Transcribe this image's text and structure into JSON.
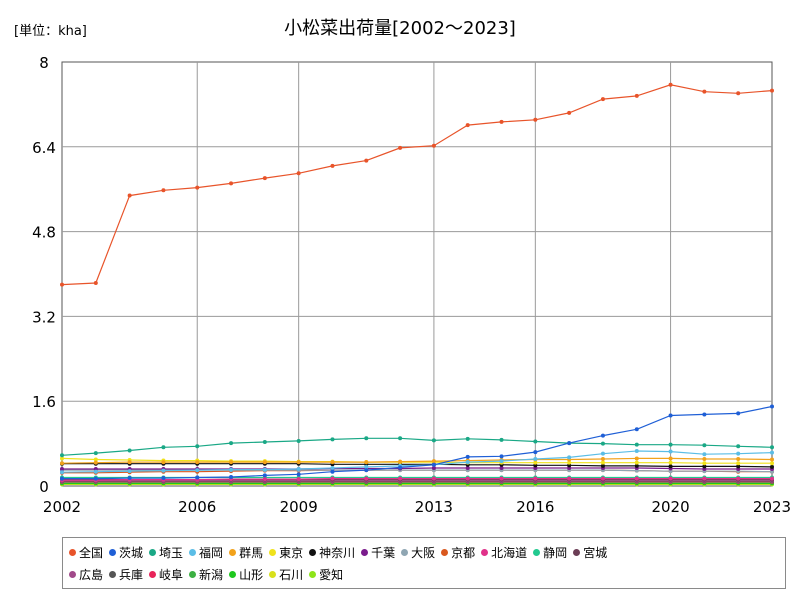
{
  "chart_data": {
    "type": "line",
    "title": "小松菜出荷量[2002～2023]",
    "unit_label": "[単位：kha]",
    "ylim": [
      0,
      8
    ],
    "y_ticks": [
      "0",
      "1.6",
      "3.2",
      "4.8",
      "6.4",
      "8"
    ],
    "x_ticks": [
      "2002",
      "2006",
      "2009",
      "2013",
      "2016",
      "2020",
      "2023"
    ],
    "grid": true,
    "legend_position": "bottom",
    "x": [
      2002,
      2003,
      2004,
      2005,
      2006,
      2007,
      2008,
      2009,
      2010,
      2011,
      2012,
      2013,
      2014,
      2015,
      2016,
      2017,
      2018,
      2019,
      2020,
      2021,
      2022,
      2023
    ],
    "series": [
      {
        "name": "全国",
        "color": "#e8542a",
        "values": [
          3.8,
          3.83,
          5.48,
          5.58,
          5.63,
          5.71,
          5.81,
          5.9,
          6.04,
          6.14,
          6.38,
          6.42,
          6.81,
          6.87,
          6.91,
          7.04,
          7.3,
          7.36,
          7.57,
          7.44,
          7.41,
          7.46
        ]
      },
      {
        "name": "茨城",
        "color": "#1f5fd6",
        "values": [
          0.14,
          0.14,
          0.15,
          0.15,
          0.16,
          0.17,
          0.2,
          0.22,
          0.27,
          0.3,
          0.35,
          0.4,
          0.55,
          0.56,
          0.64,
          0.81,
          0.95,
          1.07,
          1.33,
          1.35,
          1.37,
          1.5
        ]
      },
      {
        "name": "埼玉",
        "color": "#1aa886",
        "values": [
          0.58,
          0.62,
          0.67,
          0.73,
          0.75,
          0.81,
          0.83,
          0.85,
          0.88,
          0.9,
          0.9,
          0.86,
          0.89,
          0.87,
          0.84,
          0.81,
          0.8,
          0.78,
          0.78,
          0.77,
          0.75,
          0.73
        ]
      },
      {
        "name": "福岡",
        "color": "#5bbde6",
        "values": [
          0.26,
          0.27,
          0.28,
          0.29,
          0.3,
          0.31,
          0.31,
          0.32,
          0.34,
          0.36,
          0.38,
          0.4,
          0.45,
          0.47,
          0.51,
          0.54,
          0.61,
          0.66,
          0.65,
          0.6,
          0.61,
          0.63
        ]
      },
      {
        "name": "群馬",
        "color": "#f2a21b",
        "values": [
          0.43,
          0.44,
          0.45,
          0.45,
          0.45,
          0.45,
          0.45,
          0.45,
          0.45,
          0.45,
          0.46,
          0.47,
          0.48,
          0.49,
          0.5,
          0.5,
          0.51,
          0.52,
          0.52,
          0.51,
          0.51,
          0.5
        ]
      },
      {
        "name": "東京",
        "color": "#f0e21c",
        "values": [
          0.52,
          0.5,
          0.49,
          0.48,
          0.48,
          0.47,
          0.47,
          0.46,
          0.46,
          0.45,
          0.45,
          0.45,
          0.44,
          0.44,
          0.44,
          0.44,
          0.44,
          0.44,
          0.44,
          0.43,
          0.43,
          0.43
        ]
      },
      {
        "name": "神奈川",
        "color": "#111111",
        "values": [
          0.42,
          0.42,
          0.42,
          0.42,
          0.42,
          0.42,
          0.42,
          0.42,
          0.41,
          0.41,
          0.41,
          0.41,
          0.4,
          0.4,
          0.39,
          0.39,
          0.38,
          0.38,
          0.37,
          0.37,
          0.37,
          0.36
        ]
      },
      {
        "name": "千葉",
        "color": "#7a1b8c",
        "values": [
          0.32,
          0.32,
          0.32,
          0.32,
          0.32,
          0.32,
          0.32,
          0.32,
          0.33,
          0.33,
          0.33,
          0.34,
          0.34,
          0.34,
          0.34,
          0.34,
          0.34,
          0.34,
          0.33,
          0.32,
          0.32,
          0.32
        ]
      },
      {
        "name": "大阪",
        "color": "#8fa6b3",
        "values": [
          0.3,
          0.3,
          0.3,
          0.3,
          0.3,
          0.3,
          0.3,
          0.3,
          0.3,
          0.3,
          0.3,
          0.3,
          0.3,
          0.3,
          0.3,
          0.3,
          0.3,
          0.29,
          0.28,
          0.28,
          0.28,
          0.27
        ]
      },
      {
        "name": "京都",
        "color": "#d9581e",
        "values": [
          0.25,
          0.25,
          0.26,
          0.27,
          0.27,
          0.28,
          0.29,
          0.29,
          0.3,
          0.3,
          0.3,
          0.3,
          0.3,
          0.3,
          0.3,
          0.3,
          0.3,
          0.29,
          0.28,
          0.28,
          0.27,
          0.27
        ]
      },
      {
        "name": "北海道",
        "color": "#e0328a",
        "values": [
          0.11,
          0.11,
          0.12,
          0.12,
          0.12,
          0.13,
          0.13,
          0.13,
          0.14,
          0.14,
          0.14,
          0.14,
          0.14,
          0.14,
          0.14,
          0.14,
          0.14,
          0.14,
          0.14,
          0.14,
          0.14,
          0.14
        ]
      },
      {
        "name": "静岡",
        "color": "#22c98f",
        "values": [
          0.16,
          0.16,
          0.16,
          0.16,
          0.16,
          0.16,
          0.16,
          0.16,
          0.16,
          0.16,
          0.16,
          0.16,
          0.16,
          0.16,
          0.16,
          0.16,
          0.16,
          0.16,
          0.16,
          0.16,
          0.16,
          0.16
        ]
      },
      {
        "name": "宮城",
        "color": "#6b3d55",
        "values": [
          0.12,
          0.12,
          0.12,
          0.12,
          0.12,
          0.12,
          0.12,
          0.12,
          0.12,
          0.12,
          0.12,
          0.12,
          0.12,
          0.12,
          0.12,
          0.12,
          0.12,
          0.12,
          0.12,
          0.12,
          0.12,
          0.12
        ]
      },
      {
        "name": "広島",
        "color": "#a14a8a",
        "values": [
          0.1,
          0.1,
          0.1,
          0.1,
          0.1,
          0.1,
          0.1,
          0.1,
          0.1,
          0.1,
          0.1,
          0.1,
          0.1,
          0.1,
          0.1,
          0.1,
          0.1,
          0.1,
          0.1,
          0.1,
          0.1,
          0.1
        ]
      },
      {
        "name": "兵庫",
        "color": "#555555",
        "values": [
          0.09,
          0.09,
          0.09,
          0.09,
          0.09,
          0.09,
          0.09,
          0.09,
          0.09,
          0.09,
          0.09,
          0.09,
          0.09,
          0.09,
          0.09,
          0.09,
          0.09,
          0.09,
          0.09,
          0.09,
          0.09,
          0.09
        ]
      },
      {
        "name": "岐阜",
        "color": "#e8245a",
        "values": [
          0.08,
          0.08,
          0.08,
          0.08,
          0.08,
          0.08,
          0.08,
          0.08,
          0.08,
          0.08,
          0.08,
          0.08,
          0.08,
          0.08,
          0.08,
          0.08,
          0.08,
          0.08,
          0.08,
          0.08,
          0.08,
          0.08
        ]
      },
      {
        "name": "新潟",
        "color": "#3cb043",
        "values": [
          0.07,
          0.07,
          0.07,
          0.07,
          0.07,
          0.07,
          0.07,
          0.07,
          0.07,
          0.07,
          0.07,
          0.07,
          0.07,
          0.07,
          0.07,
          0.07,
          0.07,
          0.07,
          0.07,
          0.07,
          0.07,
          0.07
        ]
      },
      {
        "name": "山形",
        "color": "#1ec81e",
        "values": [
          0.05,
          0.05,
          0.05,
          0.05,
          0.05,
          0.05,
          0.05,
          0.05,
          0.05,
          0.05,
          0.05,
          0.05,
          0.05,
          0.05,
          0.05,
          0.05,
          0.05,
          0.05,
          0.05,
          0.05,
          0.05,
          0.05
        ]
      },
      {
        "name": "石川",
        "color": "#d8e01c",
        "values": [
          0.04,
          0.04,
          0.04,
          0.04,
          0.04,
          0.04,
          0.04,
          0.04,
          0.04,
          0.04,
          0.04,
          0.04,
          0.04,
          0.04,
          0.04,
          0.04,
          0.04,
          0.04,
          0.04,
          0.04,
          0.04,
          0.04
        ]
      },
      {
        "name": "愛知",
        "color": "#8ee41a",
        "values": [
          0.03,
          0.03,
          0.03,
          0.03,
          0.03,
          0.03,
          0.03,
          0.03,
          0.03,
          0.03,
          0.03,
          0.03,
          0.03,
          0.03,
          0.03,
          0.03,
          0.03,
          0.03,
          0.03,
          0.03,
          0.03,
          0.03
        ]
      }
    ]
  }
}
